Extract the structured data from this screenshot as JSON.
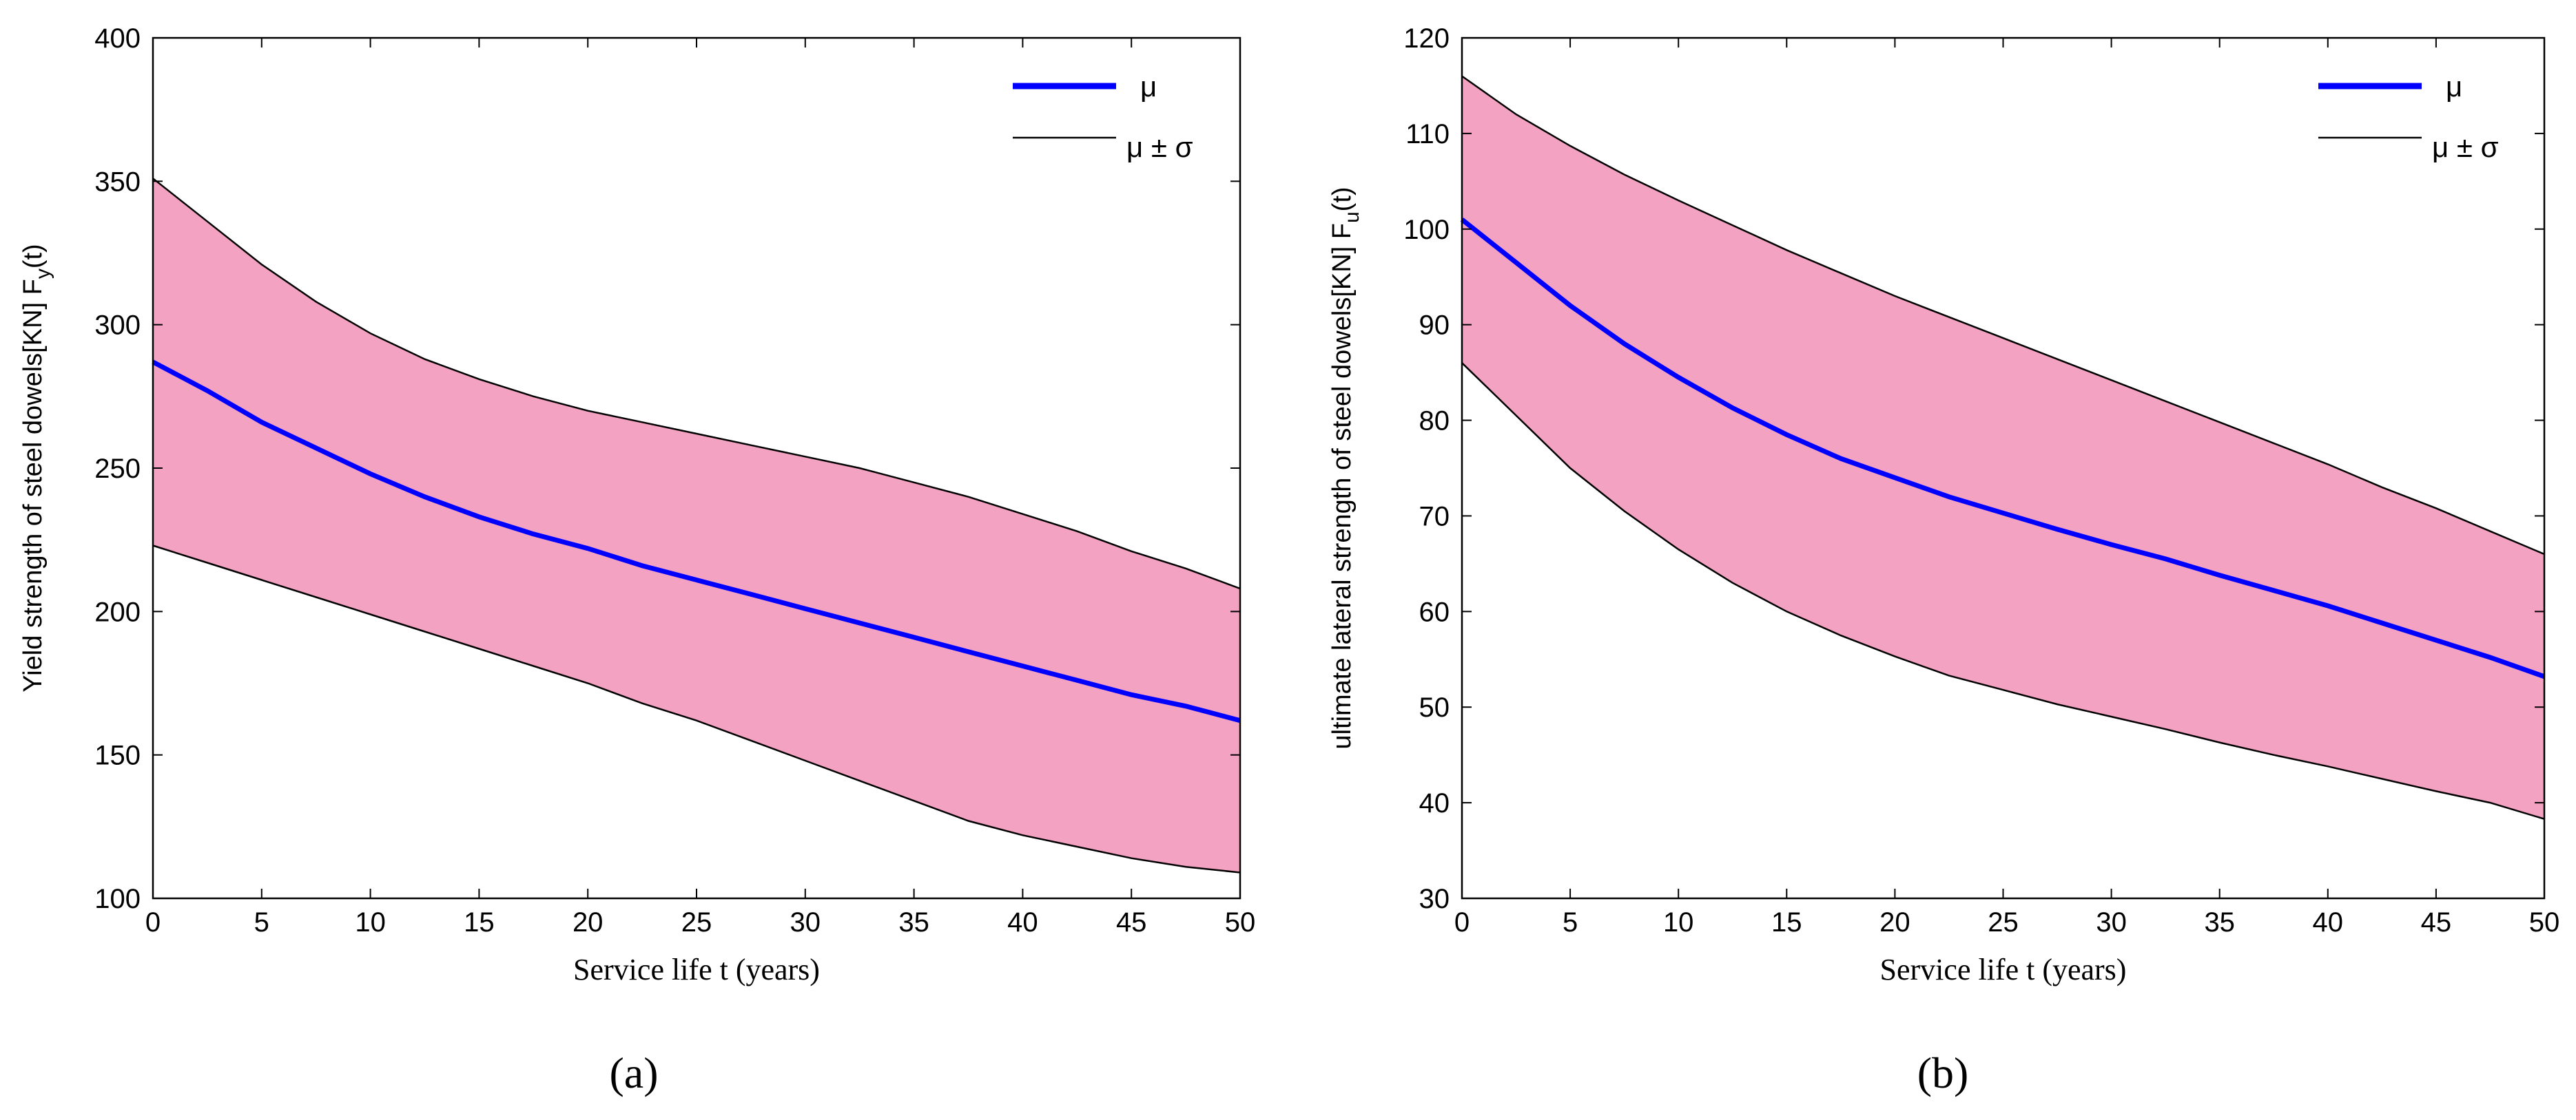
{
  "chart_data": [
    {
      "type": "line",
      "panel_label": "(a)",
      "title": "",
      "xlabel": "Service life t (years)",
      "ylabel_main": "Yield strength of steel dowels[KN]  F",
      "ylabel_sub": "y",
      "ylabel_tail": "(t)",
      "xlim": [
        0,
        50
      ],
      "ylim": [
        100,
        400
      ],
      "xticks": [
        0,
        5,
        10,
        15,
        20,
        25,
        30,
        35,
        40,
        45,
        50
      ],
      "yticks": [
        100,
        150,
        200,
        250,
        300,
        350,
        400
      ],
      "x": [
        0,
        2.5,
        5,
        7.5,
        10,
        12.5,
        15,
        17.5,
        20,
        22.5,
        25,
        27.5,
        30,
        32.5,
        35,
        37.5,
        40,
        42.5,
        45,
        47.5,
        50
      ],
      "series": [
        {
          "name": "μ",
          "role": "mean",
          "color": "#0000ff",
          "values": [
            287,
            277,
            266,
            257,
            248,
            240,
            233,
            227,
            222,
            216,
            211,
            206,
            201,
            196,
            191,
            186,
            181,
            176,
            171,
            167,
            162
          ]
        },
        {
          "name": "μ + σ",
          "role": "upper",
          "color": "#000000",
          "values": [
            351,
            336,
            321,
            308,
            297,
            288,
            281,
            275,
            270,
            266,
            262,
            258,
            254,
            250,
            245,
            240,
            234,
            228,
            221,
            215,
            208
          ]
        },
        {
          "name": "μ - σ",
          "role": "lower",
          "color": "#000000",
          "values": [
            223,
            217,
            211,
            205,
            199,
            193,
            187,
            181,
            175,
            168,
            162,
            155,
            148,
            141,
            134,
            127,
            122,
            118,
            114,
            111,
            109
          ]
        }
      ],
      "band_fill": "#f4a2c2",
      "legend": {
        "position": "top-right",
        "entries": [
          "μ",
          "μ  ± σ"
        ]
      }
    },
    {
      "type": "line",
      "panel_label": "(b)",
      "title": "",
      "xlabel": "Service life t (years)",
      "ylabel_main": "ultimate lateral strength of steel dowels[KN]  F",
      "ylabel_sub": "u",
      "ylabel_tail": "(t)",
      "xlim": [
        0,
        50
      ],
      "ylim": [
        30,
        120
      ],
      "xticks": [
        0,
        5,
        10,
        15,
        20,
        25,
        30,
        35,
        40,
        45,
        50
      ],
      "yticks": [
        30,
        40,
        50,
        60,
        70,
        80,
        90,
        100,
        110,
        120
      ],
      "x": [
        0,
        2.5,
        5,
        7.5,
        10,
        12.5,
        15,
        17.5,
        20,
        22.5,
        25,
        27.5,
        30,
        32.5,
        35,
        37.5,
        40,
        42.5,
        45,
        47.5,
        50
      ],
      "series": [
        {
          "name": "μ",
          "role": "mean",
          "color": "#0000ff",
          "values": [
            101,
            96.5,
            92,
            88,
            84.5,
            81.3,
            78.5,
            76,
            74,
            72,
            70.3,
            68.6,
            67,
            65.5,
            63.8,
            62.2,
            60.6,
            58.8,
            57,
            55.2,
            53.2
          ]
        },
        {
          "name": "μ + σ",
          "role": "upper",
          "color": "#000000",
          "values": [
            116,
            112,
            108.7,
            105.7,
            103,
            100.4,
            97.8,
            95.4,
            93,
            90.8,
            88.6,
            86.4,
            84.2,
            82,
            79.8,
            77.6,
            75.4,
            73,
            70.8,
            68.4,
            66
          ]
        },
        {
          "name": "μ - σ",
          "role": "lower",
          "color": "#000000",
          "values": [
            86,
            80.5,
            75,
            70.5,
            66.5,
            63,
            60,
            57.5,
            55.3,
            53.3,
            51.8,
            50.3,
            49,
            47.7,
            46.3,
            45,
            43.8,
            42.5,
            41.2,
            40,
            38.3
          ]
        }
      ],
      "band_fill": "#f4a2c2",
      "legend": {
        "position": "top-right",
        "entries": [
          "μ",
          "μ  ± σ"
        ]
      }
    }
  ]
}
